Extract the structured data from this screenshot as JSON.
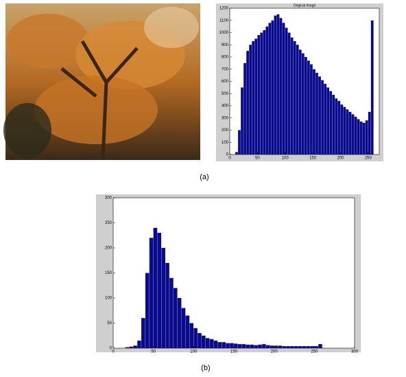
{
  "captions": [
    "(a)",
    "(b)"
  ],
  "chart_data": [
    {
      "type": "histogram",
      "title": "Original Image",
      "color": "#0a0a8c",
      "bins": [
        0,
        5,
        10,
        15,
        20,
        25,
        30,
        35,
        40,
        45,
        50,
        55,
        60,
        65,
        70,
        75,
        80,
        85,
        90,
        95,
        100,
        105,
        110,
        115,
        120,
        125,
        130,
        135,
        140,
        145,
        150,
        155,
        160,
        165,
        170,
        175,
        180,
        185,
        190,
        195,
        200,
        205,
        210,
        215,
        220,
        225,
        230,
        235,
        240,
        245,
        250,
        255,
        260
      ],
      "values": [
        0,
        0,
        20,
        200,
        550,
        750,
        850,
        900,
        930,
        950,
        980,
        1000,
        1020,
        1050,
        1080,
        1100,
        1140,
        1150,
        1120,
        1080,
        1040,
        1000,
        960,
        930,
        900,
        860,
        830,
        800,
        770,
        740,
        700,
        670,
        640,
        610,
        580,
        550,
        520,
        490,
        460,
        440,
        410,
        390,
        370,
        350,
        330,
        310,
        290,
        270,
        260,
        280,
        350,
        1100
      ],
      "xlim": [
        0,
        270
      ],
      "xticks": [
        0,
        50,
        100,
        150,
        200,
        250
      ],
      "ylim": [
        0,
        1200
      ],
      "yticks": [
        0,
        100,
        200,
        300,
        400,
        500,
        600,
        700,
        800,
        900,
        1000,
        1100,
        1200
      ]
    },
    {
      "type": "histogram",
      "color": "#0a0a8c",
      "bins": [
        0,
        5,
        10,
        15,
        20,
        25,
        30,
        35,
        40,
        45,
        50,
        55,
        60,
        65,
        70,
        75,
        80,
        85,
        90,
        95,
        100,
        105,
        110,
        115,
        120,
        125,
        130,
        135,
        140,
        145,
        150,
        155,
        160,
        165,
        170,
        175,
        180,
        185,
        190,
        195,
        200,
        205,
        210,
        215,
        220,
        225,
        230,
        235,
        240,
        245,
        250,
        255,
        260
      ],
      "values": [
        0,
        0,
        0,
        2,
        3,
        5,
        15,
        60,
        150,
        220,
        240,
        230,
        200,
        170,
        140,
        120,
        100,
        80,
        65,
        50,
        40,
        30,
        25,
        20,
        18,
        15,
        12,
        12,
        10,
        10,
        9,
        8,
        8,
        7,
        7,
        6,
        7,
        8,
        6,
        5,
        5,
        5,
        4,
        4,
        4,
        4,
        4,
        4,
        4,
        4,
        4,
        8
      ],
      "xlim": [
        0,
        300
      ],
      "xticks": [
        0,
        50,
        100,
        150,
        200,
        250,
        300
      ],
      "ylim": [
        0,
        300
      ],
      "yticks": [
        0,
        50,
        100,
        150,
        200,
        250,
        300
      ]
    }
  ]
}
